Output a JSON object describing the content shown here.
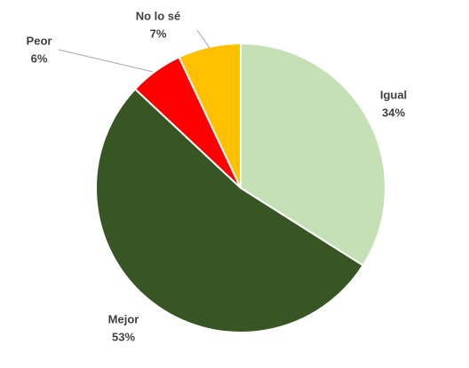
{
  "chart_data": {
    "type": "pie",
    "categories": [
      "Igual",
      "Mejor",
      "Peor",
      "No lo sé"
    ],
    "values": [
      34,
      53,
      6,
      7
    ],
    "value_labels": [
      "34%",
      "53%",
      "6%",
      "7%"
    ],
    "colors": [
      "#c5e0b4",
      "#375623",
      "#ff0000",
      "#ffc000"
    ]
  }
}
